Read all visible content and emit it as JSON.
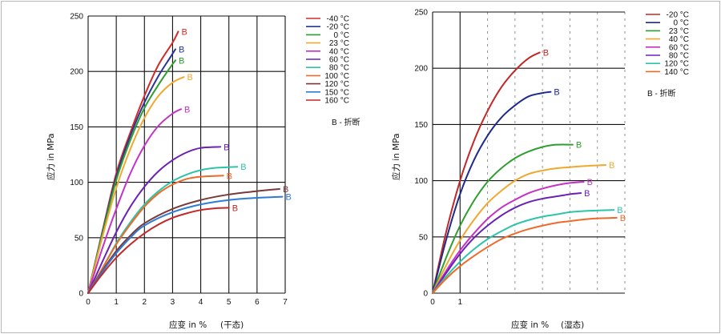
{
  "chart_data": [
    {
      "type": "line",
      "xlabel": "应变 in %",
      "xlabel_note": "(干态)",
      "ylabel": "应力 in MPa",
      "xlim": [
        0,
        7
      ],
      "ylim": [
        0,
        250
      ],
      "xticks": [
        0,
        1,
        2,
        3,
        4,
        5,
        6,
        7
      ],
      "yticks": [
        0,
        50,
        100,
        150,
        200,
        250
      ],
      "grid": true,
      "legend_position": "top-right",
      "break_marker": "B",
      "break_legend": "B - 折断",
      "series": [
        {
          "name": "-40 °C",
          "color": "#d42a2a",
          "points": [
            [
              0,
              0
            ],
            [
              0.5,
              55
            ],
            [
              1,
              108
            ],
            [
              1.5,
              145
            ],
            [
              2,
              178
            ],
            [
              2.5,
              206
            ],
            [
              3,
              226
            ],
            [
              3.2,
              236
            ]
          ],
          "end_label": "B"
        },
        {
          "name": "-20 °C",
          "color": "#283593",
          "points": [
            [
              0,
              0
            ],
            [
              0.5,
              54
            ],
            [
              1,
              105
            ],
            [
              1.5,
              142
            ],
            [
              2,
              172
            ],
            [
              2.5,
              196
            ],
            [
              2.9,
              212
            ],
            [
              3.1,
              220
            ]
          ],
          "end_label": "B"
        },
        {
          "name": "0 °C",
          "color": "#2e9e2e",
          "points": [
            [
              0,
              0
            ],
            [
              0.5,
              53
            ],
            [
              1,
              102
            ],
            [
              1.5,
              138
            ],
            [
              2,
              167
            ],
            [
              2.5,
              188
            ],
            [
              2.9,
              203
            ],
            [
              3.1,
              210
            ]
          ],
          "end_label": "B"
        },
        {
          "name": "23 °C",
          "color": "#f0a830",
          "points": [
            [
              0,
              0
            ],
            [
              0.5,
              50
            ],
            [
              1,
              95
            ],
            [
              1.5,
              130
            ],
            [
              2,
              158
            ],
            [
              2.5,
              178
            ],
            [
              3,
              190
            ],
            [
              3.4,
              195
            ]
          ],
          "end_label": "B"
        },
        {
          "name": "40 °C",
          "color": "#c532c5",
          "points": [
            [
              0,
              0
            ],
            [
              0.5,
              40
            ],
            [
              1,
              76
            ],
            [
              1.5,
              108
            ],
            [
              2,
              133
            ],
            [
              2.5,
              151
            ],
            [
              3,
              162
            ],
            [
              3.3,
              166
            ]
          ],
          "end_label": "B"
        },
        {
          "name": "60 °C",
          "color": "#6a22b5",
          "points": [
            [
              0,
              0
            ],
            [
              0.5,
              28
            ],
            [
              1,
              55
            ],
            [
              1.5,
              78
            ],
            [
              2,
              96
            ],
            [
              2.5,
              110
            ],
            [
              3,
              120
            ],
            [
              3.5,
              127
            ],
            [
              4,
              131
            ],
            [
              4.7,
              132
            ]
          ],
          "end_label": "B"
        },
        {
          "name": "80 °C",
          "color": "#2ec4a8",
          "points": [
            [
              0,
              0
            ],
            [
              0.5,
              22
            ],
            [
              1,
              45
            ],
            [
              1.5,
              64
            ],
            [
              2,
              80
            ],
            [
              2.5,
              92
            ],
            [
              3,
              101
            ],
            [
              3.5,
              107
            ],
            [
              4,
              111
            ],
            [
              4.5,
              113
            ],
            [
              5.3,
              114
            ]
          ],
          "end_label": "B"
        },
        {
          "name": "100 °C",
          "color": "#ee6a2a",
          "points": [
            [
              0,
              0
            ],
            [
              0.5,
              22
            ],
            [
              1,
              44
            ],
            [
              1.5,
              62
            ],
            [
              2,
              78
            ],
            [
              2.5,
              90
            ],
            [
              3,
              98
            ],
            [
              3.5,
              103
            ],
            [
              4,
              105
            ],
            [
              4.8,
              106
            ]
          ],
          "end_label": "B"
        },
        {
          "name": "120 °C",
          "color": "#7a3a3a",
          "points": [
            [
              0,
              0
            ],
            [
              0.5,
              20
            ],
            [
              1,
              38
            ],
            [
              1.5,
              52
            ],
            [
              2,
              63
            ],
            [
              3,
              76
            ],
            [
              4,
              84
            ],
            [
              5,
              89
            ],
            [
              6,
              92
            ],
            [
              6.8,
              94
            ]
          ],
          "end_label": "B"
        },
        {
          "name": "150 °C",
          "color": "#2e7bd6",
          "points": [
            [
              0,
              0
            ],
            [
              0.5,
              19
            ],
            [
              1,
              36
            ],
            [
              1.5,
              50
            ],
            [
              2,
              61
            ],
            [
              3,
              73
            ],
            [
              4,
              80
            ],
            [
              5,
              84
            ],
            [
              6,
              86
            ],
            [
              6.9,
              87
            ]
          ],
          "end_label": "B"
        },
        {
          "name": "160 °C",
          "color": "#c22828",
          "points": [
            [
              0,
              0
            ],
            [
              0.5,
              17
            ],
            [
              1,
              32
            ],
            [
              1.5,
              44
            ],
            [
              2,
              54
            ],
            [
              2.5,
              62
            ],
            [
              3,
              68
            ],
            [
              3.5,
              72
            ],
            [
              4,
              75
            ],
            [
              4.5,
              76.5
            ],
            [
              5,
              77
            ]
          ],
          "end_label": "B"
        }
      ]
    },
    {
      "type": "line",
      "xlabel": "应变 in %",
      "xlabel_note": "(湿态)",
      "ylabel": "应力 in MPa",
      "xlim": [
        0,
        7
      ],
      "ylim": [
        0,
        250
      ],
      "xticks": [
        0,
        1
      ],
      "yticks": [
        0,
        50,
        100,
        150,
        200,
        250
      ],
      "grid": true,
      "legend_position": "top-right",
      "break_marker": "B",
      "break_legend": "B - 折断",
      "series": [
        {
          "name": "-20 °C",
          "color": "#c22828",
          "points": [
            [
              0,
              0
            ],
            [
              0.5,
              55
            ],
            [
              1,
              100
            ],
            [
              1.5,
              135
            ],
            [
              2,
              162
            ],
            [
              2.5,
              183
            ],
            [
              3,
              198
            ],
            [
              3.5,
              209
            ],
            [
              3.9,
              214
            ]
          ],
          "end_label": "B"
        },
        {
          "name": "0 °C",
          "color": "#1f2a8a",
          "points": [
            [
              0,
              0
            ],
            [
              0.5,
              48
            ],
            [
              1,
              88
            ],
            [
              1.5,
              118
            ],
            [
              2,
              140
            ],
            [
              2.5,
              156
            ],
            [
              3,
              167
            ],
            [
              3.5,
              175
            ],
            [
              4,
              178
            ],
            [
              4.3,
              179
            ]
          ],
          "end_label": "B"
        },
        {
          "name": "23 °C",
          "color": "#2e9e2e",
          "points": [
            [
              0,
              0
            ],
            [
              0.5,
              32
            ],
            [
              1,
              60
            ],
            [
              1.5,
              82
            ],
            [
              2,
              99
            ],
            [
              2.5,
              111
            ],
            [
              3,
              120
            ],
            [
              3.5,
              126
            ],
            [
              4,
              130
            ],
            [
              4.5,
              132
            ],
            [
              5.1,
              132
            ]
          ],
          "end_label": "B"
        },
        {
          "name": "40 °C",
          "color": "#f0a830",
          "points": [
            [
              0,
              0
            ],
            [
              0.5,
              25
            ],
            [
              1,
              47
            ],
            [
              1.5,
              65
            ],
            [
              2,
              80
            ],
            [
              2.5,
              91
            ],
            [
              3,
              100
            ],
            [
              3.5,
              106
            ],
            [
              4,
              109
            ],
            [
              4.5,
              111
            ],
            [
              5,
              112
            ],
            [
              5.5,
              113
            ],
            [
              6.3,
              114
            ]
          ],
          "end_label": "B"
        },
        {
          "name": "60 °C",
          "color": "#c532c5",
          "points": [
            [
              0,
              0
            ],
            [
              0.5,
              20
            ],
            [
              1,
              38
            ],
            [
              1.5,
              53
            ],
            [
              2,
              66
            ],
            [
              2.5,
              76
            ],
            [
              3,
              83
            ],
            [
              3.5,
              89
            ],
            [
              4,
              93
            ],
            [
              4.5,
              96
            ],
            [
              5,
              98
            ],
            [
              5.5,
              99
            ]
          ],
          "end_label": "B"
        },
        {
          "name": "80 °C",
          "color": "#6a22b5",
          "points": [
            [
              0,
              0
            ],
            [
              0.5,
              18
            ],
            [
              1,
              35
            ],
            [
              1.5,
              49
            ],
            [
              2,
              60
            ],
            [
              2.5,
              69
            ],
            [
              3,
              76
            ],
            [
              3.5,
              81
            ],
            [
              4,
              84
            ],
            [
              4.5,
              86
            ],
            [
              5,
              88
            ],
            [
              5.4,
              89
            ]
          ],
          "end_label": "B"
        },
        {
          "name": "120 °C",
          "color": "#2ec4a8",
          "points": [
            [
              0,
              0
            ],
            [
              0.5,
              15
            ],
            [
              1,
              28
            ],
            [
              1.5,
              39
            ],
            [
              2,
              48
            ],
            [
              2.5,
              55
            ],
            [
              3,
              61
            ],
            [
              3.5,
              65
            ],
            [
              4,
              68
            ],
            [
              4.5,
              70
            ],
            [
              5,
              72
            ],
            [
              5.5,
              73
            ],
            [
              6,
              73.5
            ],
            [
              6.6,
              74
            ]
          ],
          "end_label": "B"
        },
        {
          "name": "140 °C",
          "color": "#ee6a2a",
          "points": [
            [
              0,
              0
            ],
            [
              0.5,
              13
            ],
            [
              1,
              24
            ],
            [
              1.5,
              33
            ],
            [
              2,
              41
            ],
            [
              2.5,
              48
            ],
            [
              3,
              53
            ],
            [
              3.5,
              57
            ],
            [
              4,
              60
            ],
            [
              4.5,
              62.5
            ],
            [
              5,
              64
            ],
            [
              5.5,
              65.5
            ],
            [
              6,
              66.5
            ],
            [
              6.7,
              67
            ]
          ],
          "end_label": "B"
        }
      ]
    }
  ]
}
